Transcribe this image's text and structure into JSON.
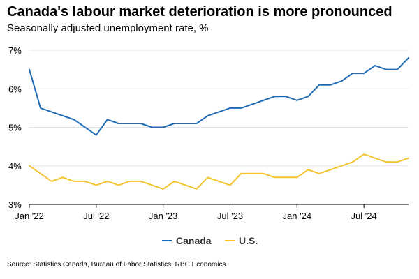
{
  "chart_data": {
    "type": "line",
    "title": "Canada's labour market deterioration is more pronounced",
    "subtitle": "Seasonally adjusted unemployment rate, %",
    "source": "Source: Statistics Canada, Bureau of Labor Statistics, RBC Economics",
    "x": [
      "2022-01",
      "2022-02",
      "2022-03",
      "2022-04",
      "2022-05",
      "2022-06",
      "2022-07",
      "2022-08",
      "2022-09",
      "2022-10",
      "2022-11",
      "2022-12",
      "2023-01",
      "2023-02",
      "2023-03",
      "2023-04",
      "2023-05",
      "2023-06",
      "2023-07",
      "2023-08",
      "2023-09",
      "2023-10",
      "2023-11",
      "2023-12",
      "2024-01",
      "2024-02",
      "2024-03",
      "2024-04",
      "2024-05",
      "2024-06",
      "2024-07",
      "2024-08",
      "2024-09",
      "2024-10",
      "2024-11"
    ],
    "x_ticks": [
      "Jan '22",
      "Jul '22",
      "Jan '23",
      "Jul '23",
      "Jan '24",
      "Jul '24"
    ],
    "x_tick_index": [
      0,
      6,
      12,
      18,
      24,
      30
    ],
    "y_ticks": [
      "3%",
      "4%",
      "5%",
      "6%",
      "7%"
    ],
    "ylim": [
      3,
      7
    ],
    "grid": true,
    "legend_position": "bottom-center",
    "series": [
      {
        "name": "Canada",
        "color": "#1f6bb5",
        "values": [
          6.5,
          5.5,
          5.4,
          5.3,
          5.2,
          5.0,
          4.8,
          5.2,
          5.1,
          5.1,
          5.1,
          5.0,
          5.0,
          5.1,
          5.1,
          5.1,
          5.3,
          5.4,
          5.5,
          5.5,
          5.6,
          5.7,
          5.8,
          5.8,
          5.7,
          5.8,
          6.1,
          6.1,
          6.2,
          6.4,
          6.4,
          6.6,
          6.5,
          6.5,
          6.8
        ]
      },
      {
        "name": "U.S.",
        "color": "#f4c430",
        "values": [
          4.0,
          3.8,
          3.6,
          3.7,
          3.6,
          3.6,
          3.5,
          3.6,
          3.5,
          3.6,
          3.6,
          3.5,
          3.4,
          3.6,
          3.5,
          3.4,
          3.7,
          3.6,
          3.5,
          3.8,
          3.8,
          3.8,
          3.7,
          3.7,
          3.7,
          3.9,
          3.8,
          3.9,
          4.0,
          4.1,
          4.3,
          4.2,
          4.1,
          4.1,
          4.2
        ]
      }
    ]
  }
}
